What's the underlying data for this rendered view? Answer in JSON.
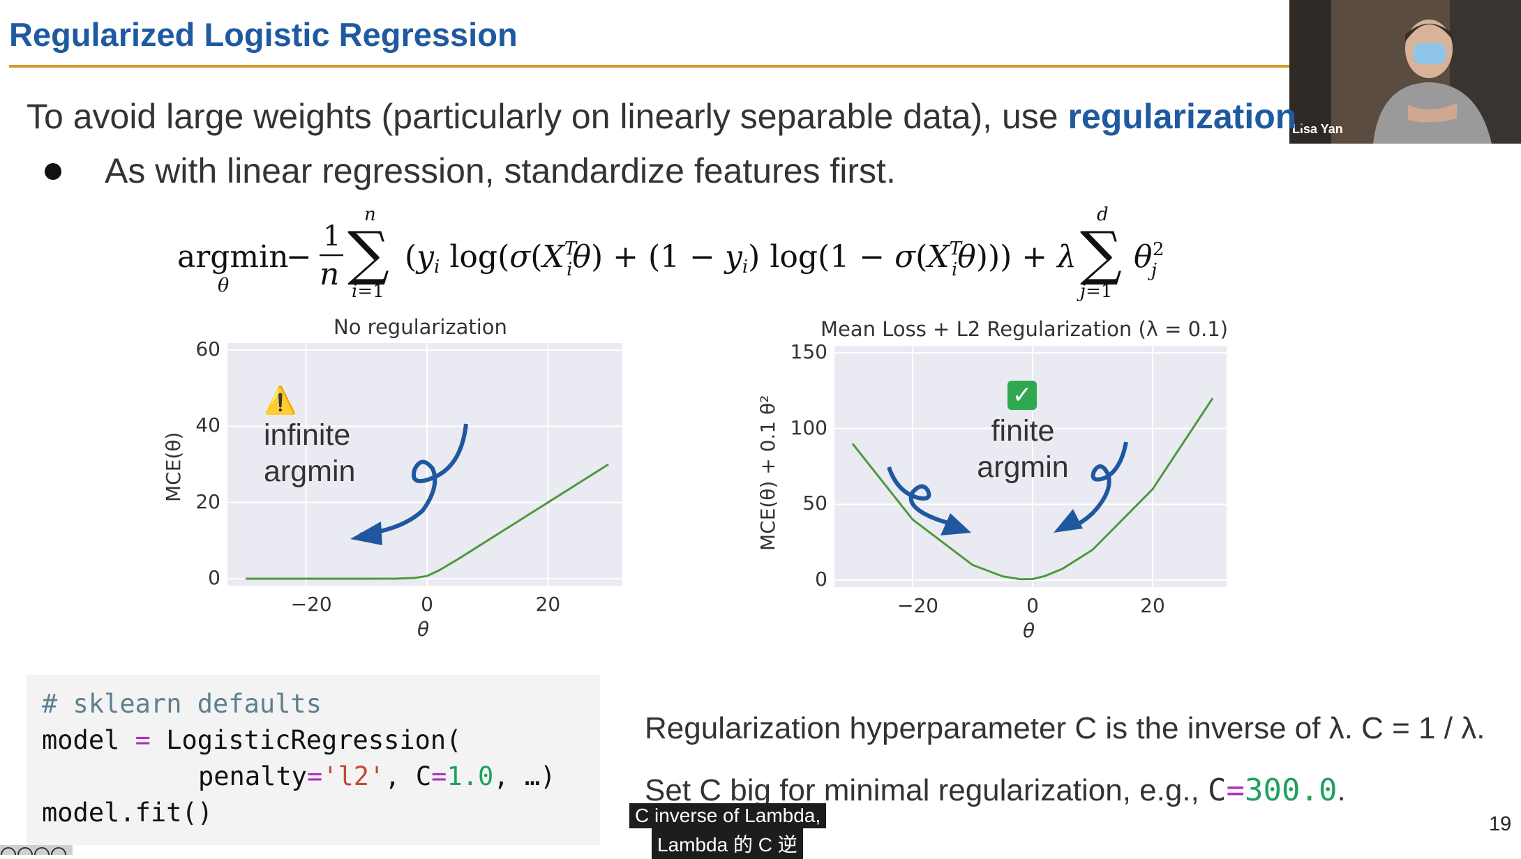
{
  "slide": {
    "title": "Regularized Logistic Regression",
    "intro_prefix": "To avoid large weights (particularly on linearly separable data), use ",
    "intro_highlight": "regularization",
    "intro_suffix": ".",
    "bullet": "As with linear regression, standardize features first.",
    "page_number": "19",
    "accent_color": "#1f5aa0",
    "rule_color": "#d49a2a"
  },
  "webcam": {
    "name": "Lisa Yan"
  },
  "charts": {
    "left": {
      "title": "No regularization",
      "ylabel": "MCE(θ)",
      "xlabel": "θ",
      "annotation_line1": "infinite",
      "annotation_line2": "argmin",
      "warning_icon": "warning-icon"
    },
    "right": {
      "title": "Mean Loss + L2 Regularization (λ = 0.1)",
      "ylabel": "MCE(θ) + 0.1 θ²",
      "xlabel": "θ",
      "annotation_line1": "finite",
      "annotation_line2": "argmin",
      "check_icon": "check-mark-icon"
    }
  },
  "chart_data": [
    {
      "type": "line",
      "title": "No regularization",
      "xlabel": "θ",
      "ylabel": "MCE(θ)",
      "xticks": [
        "−20",
        "0",
        "20"
      ],
      "yticks": [
        "0",
        "20",
        "40",
        "60"
      ],
      "xlim": [
        -30,
        30
      ],
      "ylim": [
        0,
        60
      ],
      "x": [
        -30,
        -20,
        -10,
        -5,
        -2,
        0,
        2,
        5,
        10,
        20,
        30
      ],
      "y": [
        0,
        0,
        0,
        0.01,
        0.2,
        0.7,
        2.2,
        5.0,
        10.0,
        20.0,
        30.0
      ],
      "grid": true
    },
    {
      "type": "line",
      "title": "Mean Loss + L2 Regularization (λ = 0.1)",
      "xlabel": "θ",
      "ylabel": "MCE(θ) + 0.1 θ²",
      "xticks": [
        "−20",
        "0",
        "20"
      ],
      "yticks": [
        "0",
        "50",
        "100",
        "150"
      ],
      "xlim": [
        -30,
        30
      ],
      "ylim": [
        0,
        150
      ],
      "x": [
        -30,
        -20,
        -10,
        -5,
        -2,
        0,
        2,
        5,
        10,
        20,
        30
      ],
      "y": [
        90,
        40,
        10,
        2.5,
        0.6,
        0.7,
        2.6,
        7.5,
        20,
        60,
        120
      ],
      "grid": true
    }
  ],
  "code": {
    "comment": "# sklearn defaults",
    "l1_a": "model",
    "l1_eq": "=",
    "l1_b": "LogisticRegression(",
    "l2_a": "penalty",
    "l2_eq1": "=",
    "l2_str": "'l2'",
    "l2_b": ", C",
    "l2_eq2": "=",
    "l2_num": "1.0",
    "l2_c": ", …)",
    "l3": "model.fit()"
  },
  "notes": {
    "line1": "Regularization hyperparameter C is the inverse of λ. C = 1 / λ.",
    "line2_prefix": "Set C big for minimal regularization, e.g., ",
    "line2_c": "C",
    "line2_eq": "=",
    "line2_num": "300.0",
    "line2_suffix": "."
  },
  "captions": {
    "line1": "C inverse of Lambda,",
    "line2": "Lambda 的 C 逆"
  }
}
